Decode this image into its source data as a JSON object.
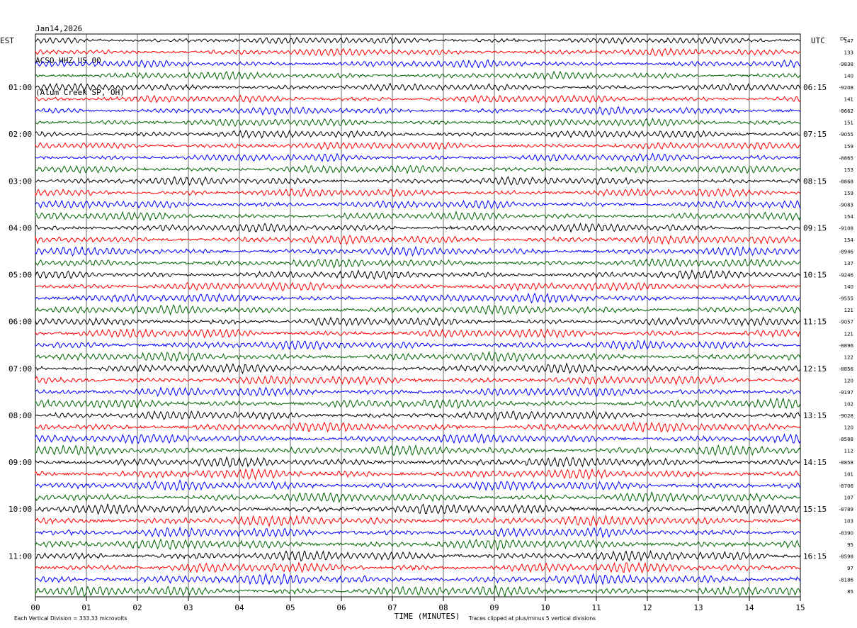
{
  "header": {
    "date": "Jan14,2026",
    "station": "ACSO HHZ US 00",
    "location": "(Alum Creek SP, OH)"
  },
  "chart_data": {
    "type": "line",
    "title": "Jan14,2026 ACSO HHZ US 00 (Alum Creek SP, OH)",
    "left_axis_title": "EST",
    "right_axis_title": "UTC",
    "dc_label": "DC",
    "xlabel": "TIME (MINUTES)",
    "xlim": [
      0,
      15
    ],
    "x_ticks": [
      "00",
      "01",
      "02",
      "03",
      "04",
      "05",
      "06",
      "07",
      "08",
      "09",
      "10",
      "11",
      "12",
      "13",
      "14",
      "15"
    ],
    "grid": true,
    "trace_colors": [
      "#000000",
      "#ff0000",
      "#0000ff",
      "#006400"
    ],
    "trace_count": 48,
    "minutes_per_trace": 15,
    "left_hour_labels": [
      "01:00",
      "02:00",
      "03:00",
      "04:00",
      "05:00",
      "06:00",
      "07:00",
      "08:00",
      "09:00",
      "10:00",
      "11:00"
    ],
    "right_hour_labels": [
      "06:15",
      "07:15",
      "08:15",
      "09:15",
      "10:15",
      "11:15",
      "12:15",
      "13:15",
      "14:15",
      "15:15",
      "16:15"
    ],
    "dc_offsets": [
      "147",
      "133",
      "-9838",
      "140",
      "-9208",
      "141",
      "-8662",
      "151",
      "-9055",
      "159",
      "-8865",
      "153",
      "-8868",
      "159",
      "-9083",
      "154",
      "-9108",
      "154",
      "-8946",
      "137",
      "-9246",
      "140",
      "-9555",
      "121",
      "-9057",
      "121",
      "-8896",
      "122",
      "-8856",
      "120",
      "-9197",
      "102",
      "-9028",
      "120",
      "-8588",
      "112",
      "-8858",
      "101",
      "-8706",
      "107",
      "-8789",
      "103",
      "-8390",
      "95",
      "-8598",
      "97",
      "-8186",
      "85"
    ],
    "footer_left": "Each Vertical Division =  333.33 microvolts",
    "footer_right": "Traces clipped at plus/minus 5 vertical divisions"
  }
}
